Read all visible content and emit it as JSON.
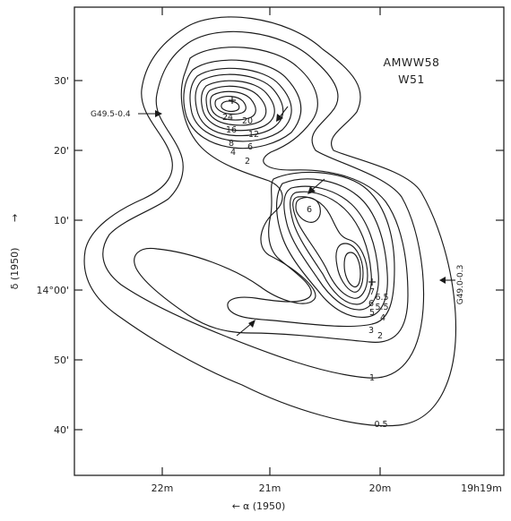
{
  "title": {
    "line1": "AMWW58",
    "line2": "W51"
  },
  "x_axis": {
    "label_arrow": "←",
    "label": "α (1950)",
    "ticks": [
      "22m",
      "21m",
      "20m",
      "19h19m"
    ]
  },
  "y_axis": {
    "label": "δ (1950)",
    "label_arrow": "→",
    "ticks": [
      "30'",
      "20'",
      "10'",
      "14°00'",
      "50'",
      "40'"
    ]
  },
  "sources": {
    "left": "G49.5-0.4",
    "right": "G49.0-0.3"
  },
  "contour_labels": {
    "north": [
      "24",
      "20",
      "16",
      "12",
      "8",
      "6",
      "4",
      "2"
    ],
    "east": [
      "6"
    ],
    "south": [
      "7",
      "6.5",
      "6",
      "5.5",
      "5",
      "4",
      "3",
      "2",
      "1",
      "0.5"
    ]
  }
}
